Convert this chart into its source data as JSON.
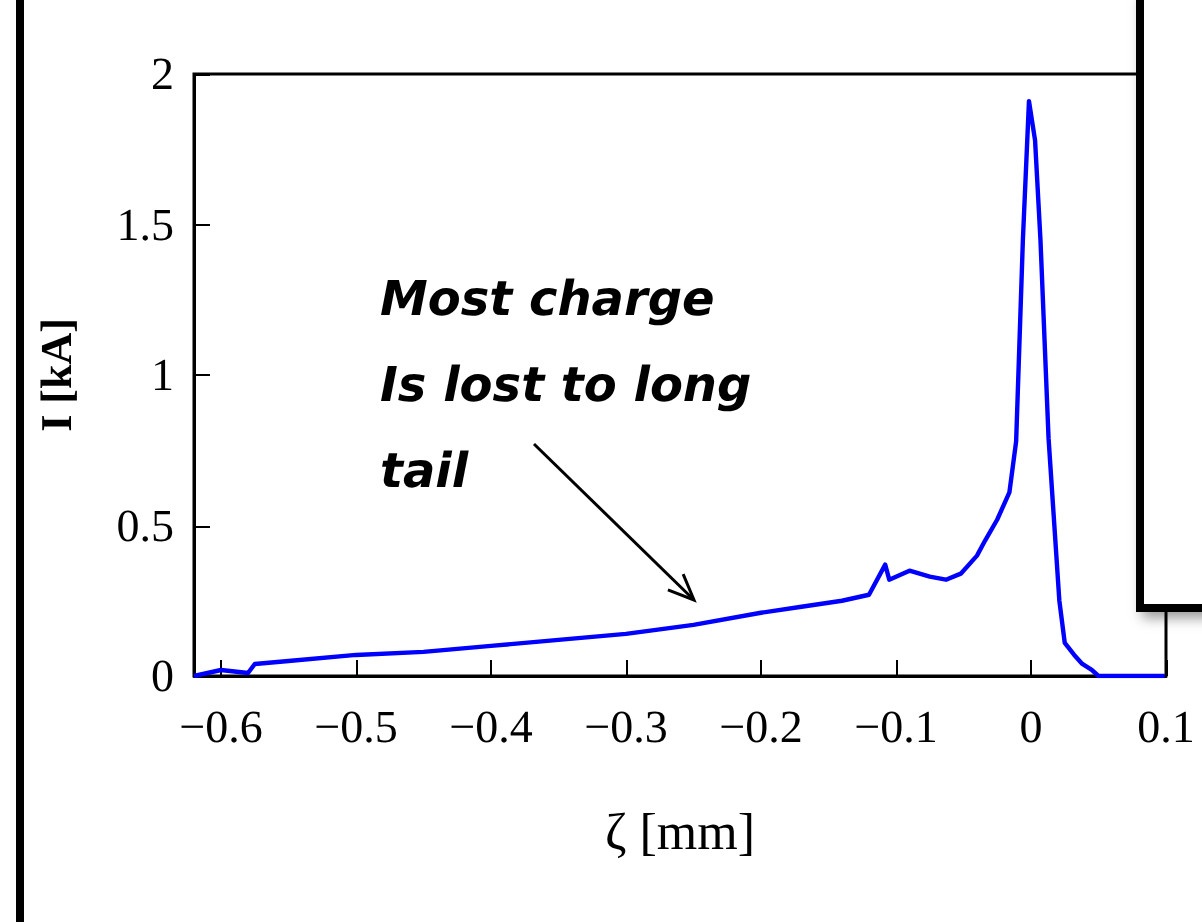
{
  "chart_data": {
    "type": "line",
    "xlabel": "ζ [mm]",
    "ylabel": "I [kA]",
    "annotations": [
      "Most charge\nIs lost to long\ntail"
    ],
    "series": [
      {
        "color": "#0000ff",
        "x": [
          -0.62,
          -0.6,
          -0.58,
          -0.575,
          -0.55,
          -0.5,
          -0.45,
          -0.4,
          -0.35,
          -0.3,
          -0.25,
          -0.2,
          -0.17,
          -0.14,
          -0.12,
          -0.108,
          -0.105,
          -0.09,
          -0.075,
          -0.063,
          -0.052,
          -0.04,
          -0.034,
          -0.025,
          -0.016,
          -0.011,
          -0.006,
          -0.0015,
          0.003,
          0.007,
          0.013,
          0.021,
          0.025,
          0.032,
          0.038,
          0.045,
          0.05,
          0.07,
          0.099
        ],
        "values": [
          0,
          0.02,
          0.01,
          0.04,
          0.05,
          0.07,
          0.08,
          0.1,
          0.12,
          0.14,
          0.17,
          0.21,
          0.23,
          0.25,
          0.27,
          0.37,
          0.32,
          0.35,
          0.33,
          0.32,
          0.34,
          0.4,
          0.45,
          0.52,
          0.61,
          0.78,
          1.45,
          1.91,
          1.78,
          1.45,
          0.79,
          0.25,
          0.11,
          0.07,
          0.04,
          0.02,
          0,
          0,
          0
        ]
      }
    ],
    "xlim": [
      -0.62,
      0.1
    ],
    "xticks": [
      -0.6,
      -0.5,
      -0.4,
      -0.3,
      -0.2,
      -0.1,
      0,
      0.1
    ],
    "ylim": [
      0,
      2
    ],
    "yticks": [
      0,
      0.5,
      1,
      1.5,
      2
    ],
    "grid": false,
    "marker": "none",
    "line_style": "solid"
  }
}
